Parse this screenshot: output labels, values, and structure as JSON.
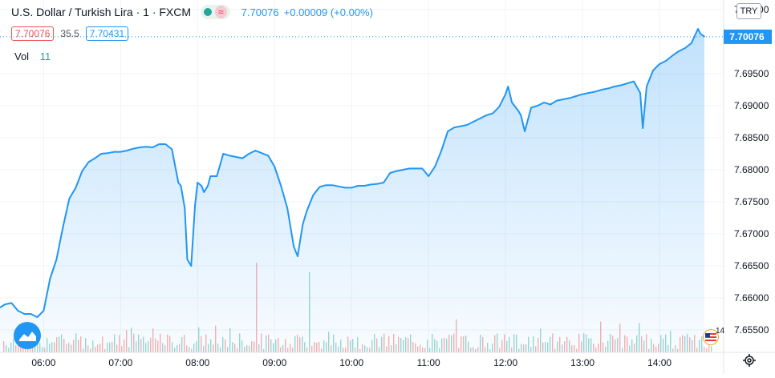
{
  "header": {
    "title": "U.S. Dollar / Turkish Lira · 1 · FXCM",
    "last_price": "7.70076",
    "change": "+0.00009 (+0.00%)",
    "bid": "7.70076",
    "spread": "35.5",
    "ask": "7.70431",
    "currency": "TRY",
    "vol_label": "Vol",
    "vol_value": "11",
    "events_count": "14"
  },
  "colors": {
    "line": "#2196f3",
    "area": "#d9ebfb",
    "vol_up": "#26a69a",
    "vol_down": "#ef5350",
    "grid": "#f0f3fa",
    "axis_text": "#131722"
  },
  "icons": {
    "logo": "tradingview-cloud-logo",
    "settings": "gear-icon",
    "events": "us-flag-icon"
  },
  "chart_data": {
    "type": "area",
    "title": "",
    "x_labels": [
      "06:00",
      "07:00",
      "08:00",
      "09:00",
      "10:00",
      "11:00",
      "12:00",
      "13:00",
      "14:00"
    ],
    "y_ticks": [
      "7.70500",
      "7.69500",
      "7.69000",
      "7.68500",
      "7.68000",
      "7.67500",
      "7.67000",
      "7.66500",
      "7.66000",
      "7.65500"
    ],
    "ylim": [
      7.6515,
      7.7065
    ],
    "grid": true,
    "price_label": "7.70076",
    "series": [
      {
        "x": [
          "05:26",
          "05:30",
          "05:35",
          "05:40",
          "05:45",
          "05:50",
          "05:55",
          "06:00",
          "06:05",
          "06:10",
          "06:15",
          "06:20",
          "06:25",
          "06:30",
          "06:35",
          "06:40",
          "06:45",
          "06:50",
          "06:55",
          "07:00",
          "07:05",
          "07:10",
          "07:15",
          "07:20",
          "07:25",
          "07:30",
          "07:35",
          "07:40",
          "07:45",
          "07:47",
          "07:50",
          "07:52",
          "07:55",
          "07:58",
          "08:00",
          "08:03",
          "08:05",
          "08:08",
          "08:10",
          "08:15",
          "08:20",
          "08:25",
          "08:30",
          "08:35",
          "08:40",
          "08:45",
          "08:50",
          "08:55",
          "09:00",
          "09:05",
          "09:10",
          "09:15",
          "09:18",
          "09:20",
          "09:22",
          "09:25",
          "09:30",
          "09:35",
          "09:40",
          "09:45",
          "09:50",
          "09:55",
          "10:00",
          "10:05",
          "10:10",
          "10:15",
          "10:20",
          "10:25",
          "10:30",
          "10:35",
          "10:40",
          "10:45",
          "10:50",
          "10:55",
          "11:00",
          "11:05",
          "11:10",
          "11:15",
          "11:20",
          "11:25",
          "11:30",
          "11:35",
          "11:40",
          "11:45",
          "11:50",
          "11:55",
          "12:00",
          "12:02",
          "12:05",
          "12:10",
          "12:12",
          "12:15",
          "12:20",
          "12:25",
          "12:30",
          "12:35",
          "12:40",
          "12:45",
          "12:50",
          "12:55",
          "13:00",
          "13:05",
          "13:10",
          "13:15",
          "13:20",
          "13:25",
          "13:30",
          "13:35",
          "13:40",
          "13:45",
          "13:47",
          "13:50",
          "13:55",
          "14:00",
          "14:05",
          "14:10",
          "14:15",
          "14:20",
          "14:25",
          "14:30",
          "14:32",
          "14:35"
        ],
        "values": [
          7.6585,
          7.659,
          7.6592,
          7.658,
          7.6575,
          7.6575,
          7.657,
          7.658,
          7.663,
          7.666,
          7.671,
          7.6755,
          7.6772,
          7.6798,
          7.6812,
          7.6818,
          7.6825,
          7.6826,
          7.6828,
          7.6828,
          7.683,
          7.6833,
          7.6835,
          7.6836,
          7.6835,
          7.684,
          7.684,
          7.6832,
          7.678,
          7.6775,
          7.674,
          7.666,
          7.665,
          7.6745,
          7.678,
          7.6775,
          7.6765,
          7.6775,
          7.679,
          7.679,
          7.6825,
          7.6822,
          7.682,
          7.6818,
          7.6825,
          7.683,
          7.6826,
          7.6822,
          7.6805,
          7.6775,
          7.674,
          7.668,
          7.6665,
          7.669,
          7.6715,
          7.6735,
          7.676,
          7.6773,
          7.6776,
          7.6776,
          7.6774,
          7.6772,
          7.6772,
          7.6775,
          7.6775,
          7.6777,
          7.6778,
          7.678,
          7.6795,
          7.6798,
          7.68,
          7.6802,
          7.6802,
          7.6802,
          7.679,
          7.6805,
          7.683,
          7.686,
          7.6866,
          7.6868,
          7.687,
          7.6875,
          7.688,
          7.6885,
          7.6888,
          7.6898,
          7.6918,
          7.693,
          7.6905,
          7.6892,
          7.6885,
          7.686,
          7.6897,
          7.69,
          7.6905,
          7.6902,
          7.6908,
          7.691,
          7.6912,
          7.6915,
          7.6918,
          7.692,
          7.6922,
          7.6925,
          7.6927,
          7.693,
          7.6932,
          7.6935,
          7.6938,
          7.692,
          7.6865,
          7.693,
          7.6955,
          7.6965,
          7.697,
          7.6978,
          7.6985,
          7.699,
          7.6998,
          7.702,
          7.7012,
          7.7008
        ]
      }
    ]
  }
}
